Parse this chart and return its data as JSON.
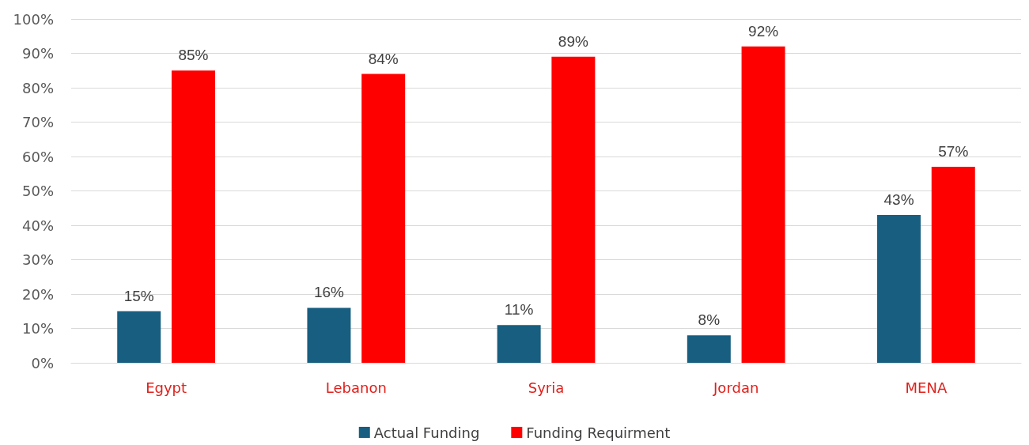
{
  "chart_data": {
    "type": "bar",
    "categories": [
      "Egypt",
      "Lebanon",
      "Syria",
      "Jordan",
      "MENA"
    ],
    "series": [
      {
        "name": "Actual Funding",
        "color": "#175e80",
        "values": [
          15,
          16,
          11,
          8,
          43
        ],
        "value_labels": [
          "15%",
          "16%",
          "11%",
          "8%",
          "43%"
        ]
      },
      {
        "name": "Funding Requirment",
        "color": "#ff0000",
        "values": [
          85,
          84,
          89,
          92,
          57
        ],
        "value_labels": [
          "85%",
          "84%",
          "89%",
          "92%",
          "57%"
        ]
      }
    ],
    "ylim": [
      0,
      100
    ],
    "yticks": [
      {
        "value": 0,
        "label": "0%"
      },
      {
        "value": 10,
        "label": "10%"
      },
      {
        "value": 20,
        "label": "20%"
      },
      {
        "value": 30,
        "label": "30%"
      },
      {
        "value": 40,
        "label": "40%"
      },
      {
        "value": 50,
        "label": "50%"
      },
      {
        "value": 60,
        "label": "60%"
      },
      {
        "value": 70,
        "label": "70%"
      },
      {
        "value": 80,
        "label": "80%"
      },
      {
        "value": 90,
        "label": "90%"
      },
      {
        "value": 100,
        "label": "100%"
      }
    ],
    "grid": "y",
    "legend": "bottom"
  }
}
